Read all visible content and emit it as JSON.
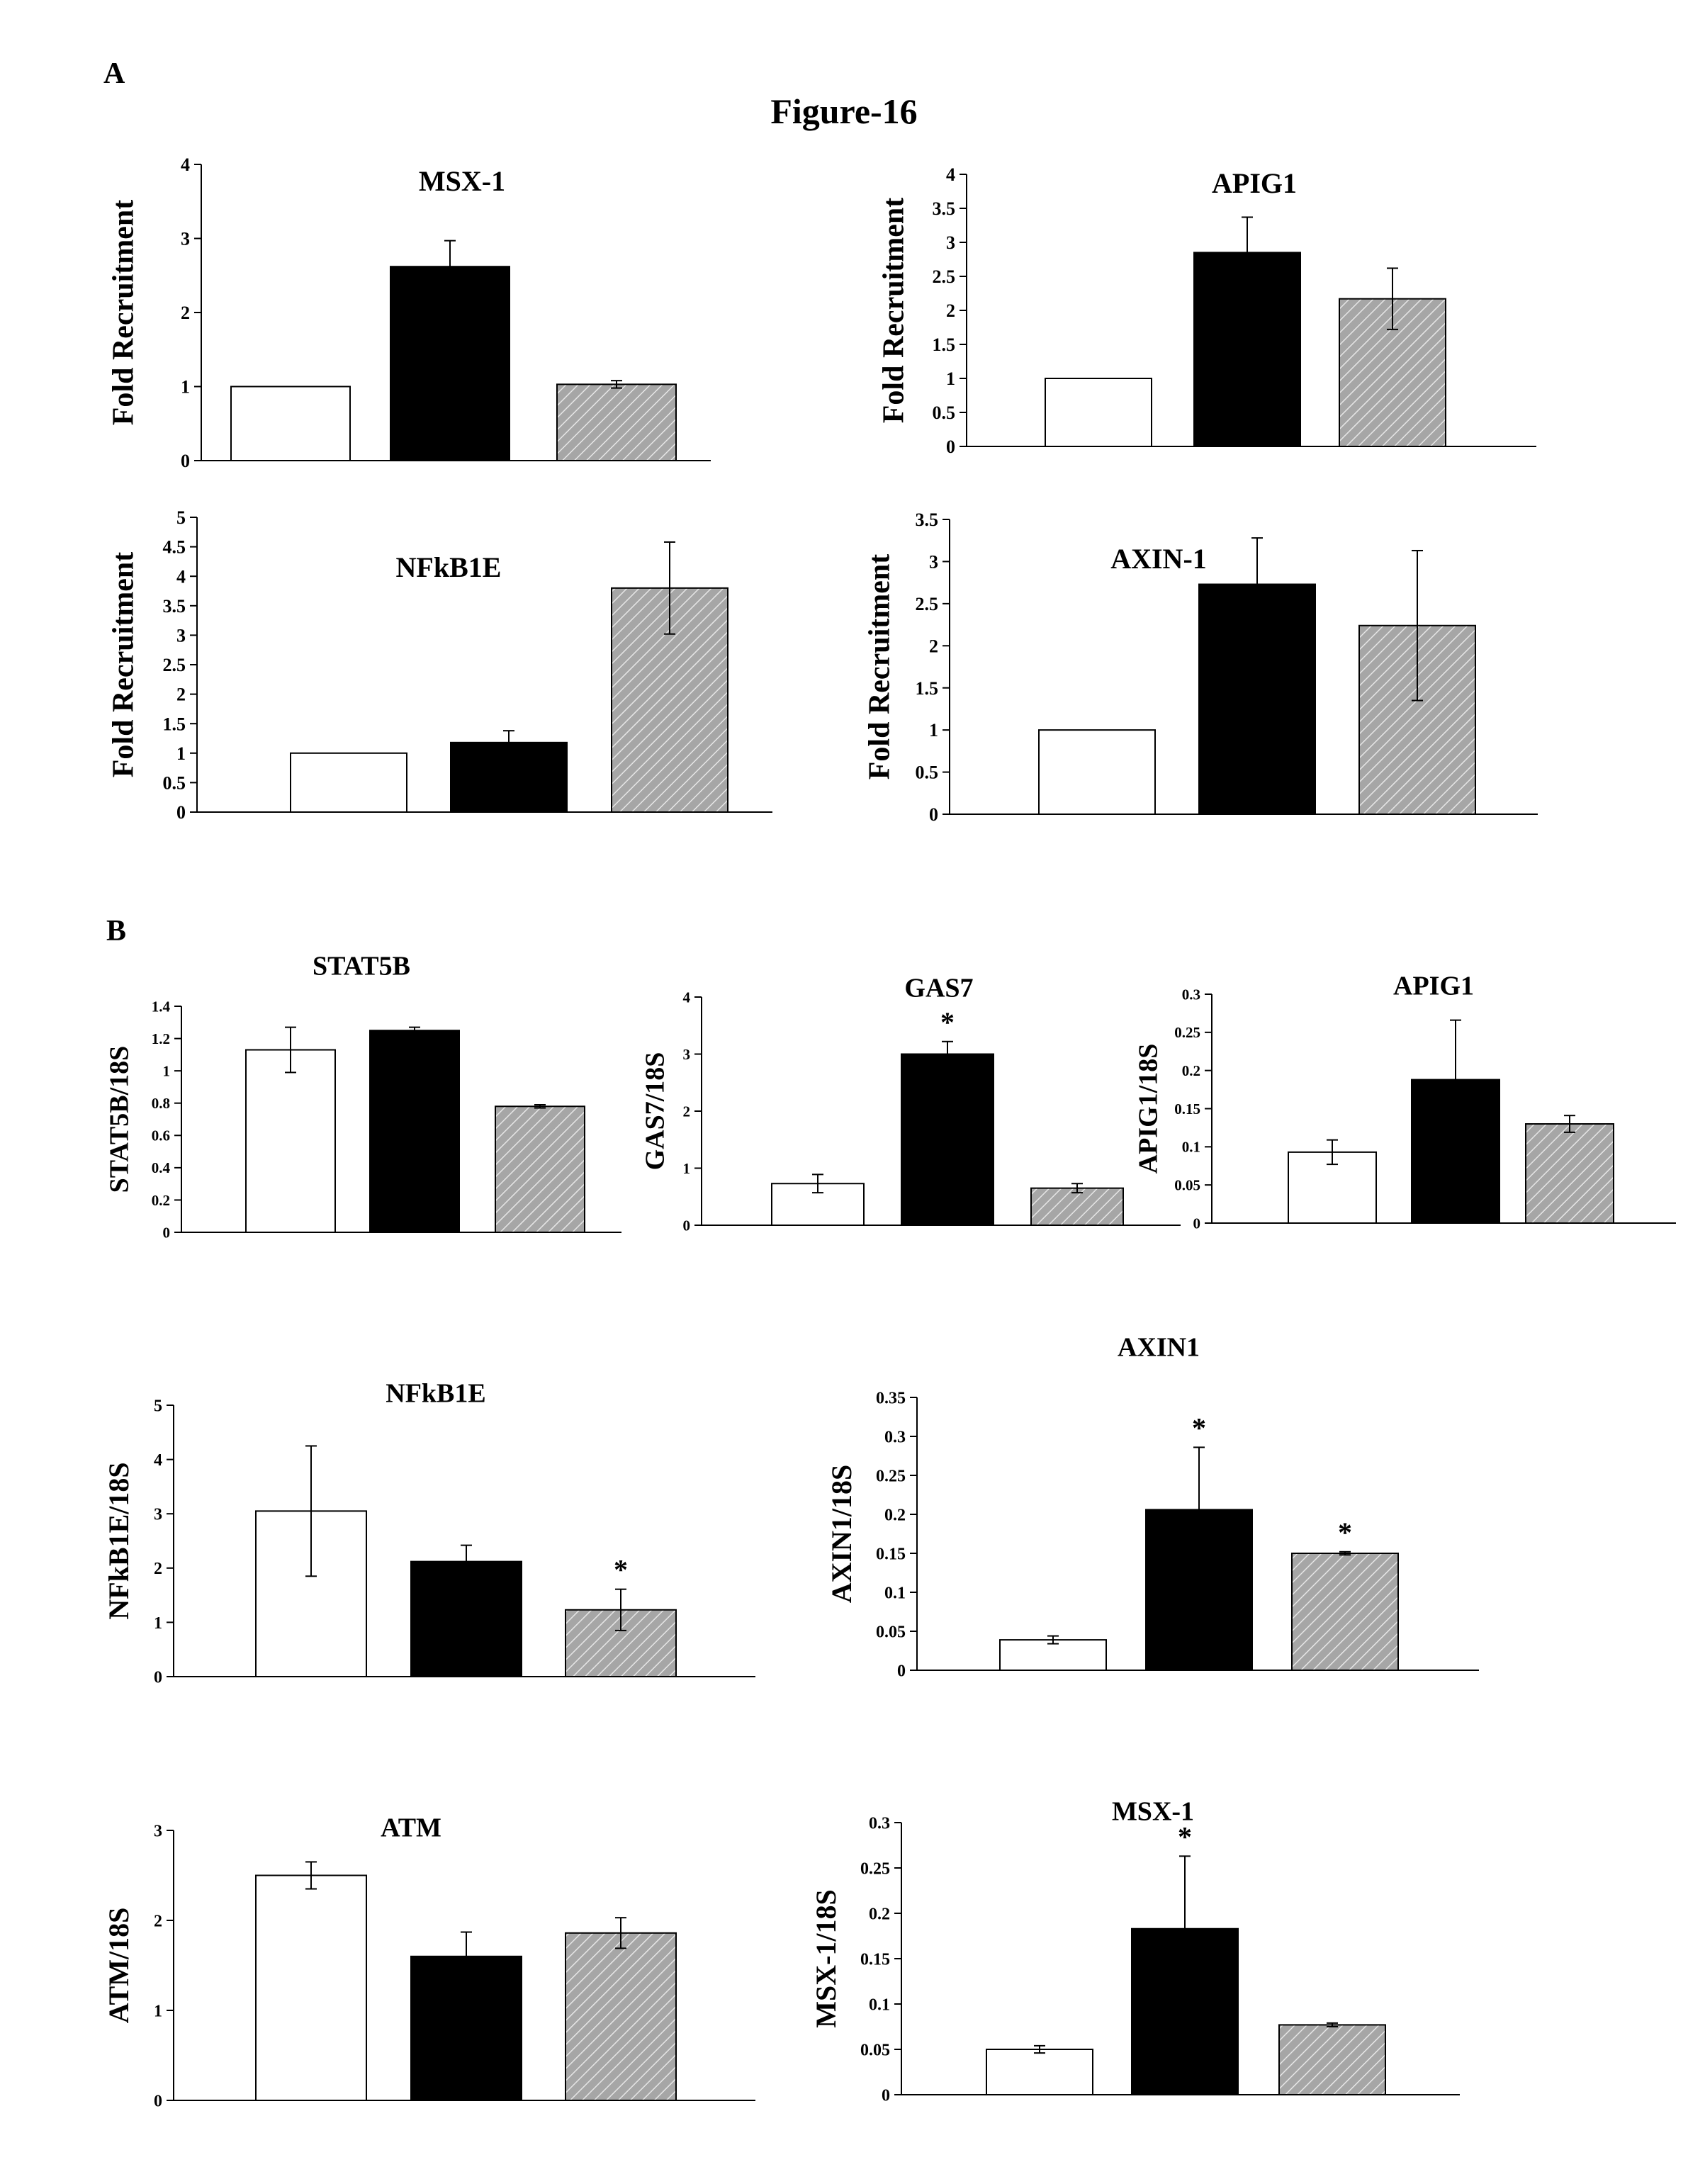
{
  "figure_title": "Figure-16",
  "section_a_label": "A",
  "section_b_label": "B",
  "colors": {
    "control": "#ffffff",
    "treatment": "#000000",
    "hatched_fill": "#a6a6a6",
    "hatch_line": "#e6e6e6"
  },
  "chart_data": [
    {
      "id": "a-msx1",
      "type": "bar",
      "title": "MSX-1",
      "ylabel": "Fold Recruitment",
      "ylim": [
        0,
        4
      ],
      "yticks": [
        "0",
        "1",
        "2",
        "3",
        "4"
      ],
      "values": [
        1.0,
        2.62,
        1.03
      ],
      "errors": [
        0,
        0.35,
        0.05
      ],
      "stars": [
        false,
        false,
        false
      ]
    },
    {
      "id": "a-apig1",
      "type": "bar",
      "title": "APIG1",
      "ylabel": "Fold Recruitment",
      "ylim": [
        0,
        4
      ],
      "yticks": [
        "0",
        "0.5",
        "1",
        "1.5",
        "2",
        "2.5",
        "3",
        "3.5",
        "4"
      ],
      "values": [
        1.0,
        2.85,
        2.17
      ],
      "errors": [
        0,
        0.52,
        0.45
      ],
      "stars": [
        false,
        false,
        false
      ]
    },
    {
      "id": "a-nfkb1e",
      "type": "bar",
      "title": "NFkB1E",
      "ylabel": "Fold Recruitment",
      "ylim": [
        0,
        5
      ],
      "yticks": [
        "0",
        "0.5",
        "1",
        "1.5",
        "2",
        "2.5",
        "3",
        "3.5",
        "4",
        "4.5",
        "5"
      ],
      "values": [
        1.0,
        1.18,
        3.8
      ],
      "errors": [
        0,
        0.2,
        0.78
      ],
      "stars": [
        false,
        false,
        false
      ]
    },
    {
      "id": "a-axin1",
      "type": "bar",
      "title": "AXIN-1",
      "ylabel": "Fold Recruitment",
      "ylim": [
        0,
        3.5
      ],
      "yticks": [
        "0",
        "0.5",
        "1",
        "1.5",
        "2",
        "2.5",
        "3",
        "3.5"
      ],
      "values": [
        1.0,
        2.73,
        2.24
      ],
      "errors": [
        0,
        0.55,
        0.89
      ],
      "stars": [
        false,
        false,
        false
      ]
    },
    {
      "id": "b-stat5b",
      "type": "bar",
      "title": "STAT5B",
      "ylabel": "STAT5B/18S",
      "ylim": [
        0,
        1.4
      ],
      "yticks": [
        "0",
        "0.2",
        "0.4",
        "0.6",
        "0.8",
        "1",
        "1.2",
        "1.4"
      ],
      "values": [
        1.13,
        1.25,
        0.78
      ],
      "errors": [
        0.14,
        0.02,
        0.01
      ],
      "stars": [
        false,
        false,
        false
      ]
    },
    {
      "id": "b-gas7",
      "type": "bar",
      "title": "GAS7",
      "ylabel": "GAS7/18S",
      "ylim": [
        0,
        4
      ],
      "yticks": [
        "0",
        "1",
        "2",
        "3",
        "4"
      ],
      "values": [
        0.73,
        3.0,
        0.65
      ],
      "errors": [
        0.16,
        0.22,
        0.08
      ],
      "stars": [
        false,
        true,
        false
      ]
    },
    {
      "id": "b-apig1",
      "type": "bar",
      "title": "APIG1",
      "ylabel": "APIG1/18S",
      "ylim": [
        0,
        0.3
      ],
      "yticks": [
        "0",
        "0.05",
        "0.1",
        "0.15",
        "0.2",
        "0.25",
        "0.3"
      ],
      "values": [
        0.093,
        0.188,
        0.13
      ],
      "errors": [
        0.016,
        0.078,
        0.011
      ],
      "stars": [
        false,
        false,
        false
      ]
    },
    {
      "id": "b-nfkb1e",
      "type": "bar",
      "title": "NFkB1E",
      "ylabel": "NFkB1E/18S",
      "ylim": [
        0,
        5
      ],
      "yticks": [
        "0",
        "1",
        "2",
        "3",
        "4",
        "5"
      ],
      "values": [
        3.05,
        2.12,
        1.23
      ],
      "errors": [
        1.2,
        0.3,
        0.38
      ],
      "stars": [
        false,
        false,
        true
      ]
    },
    {
      "id": "b-axin1",
      "type": "bar",
      "title": "AXIN1",
      "ylabel": "AXIN1/18S",
      "ylim": [
        0,
        0.35
      ],
      "yticks": [
        "0",
        "0.05",
        "0.1",
        "0.15",
        "0.2",
        "0.25",
        "0.3",
        "0.35"
      ],
      "values": [
        0.039,
        0.206,
        0.15
      ],
      "errors": [
        0.005,
        0.08,
        0.002
      ],
      "stars": [
        false,
        true,
        true
      ]
    },
    {
      "id": "b-atm",
      "type": "bar",
      "title": "ATM",
      "ylabel": "ATM/18S",
      "ylim": [
        0,
        3
      ],
      "yticks": [
        "0",
        "1",
        "2",
        "3"
      ],
      "values": [
        2.5,
        1.6,
        1.86
      ],
      "errors": [
        0.15,
        0.27,
        0.17
      ],
      "stars": [
        false,
        false,
        false
      ]
    },
    {
      "id": "b-msx1",
      "type": "bar",
      "title": "MSX-1",
      "ylabel": "MSX-1/18S",
      "ylim": [
        0,
        0.3
      ],
      "yticks": [
        "0",
        "0.05",
        "0.1",
        "0.15",
        "0.2",
        "0.25",
        "0.3"
      ],
      "values": [
        0.05,
        0.183,
        0.077
      ],
      "errors": [
        0.004,
        0.08,
        0.002
      ],
      "stars": [
        false,
        true,
        false
      ]
    }
  ]
}
